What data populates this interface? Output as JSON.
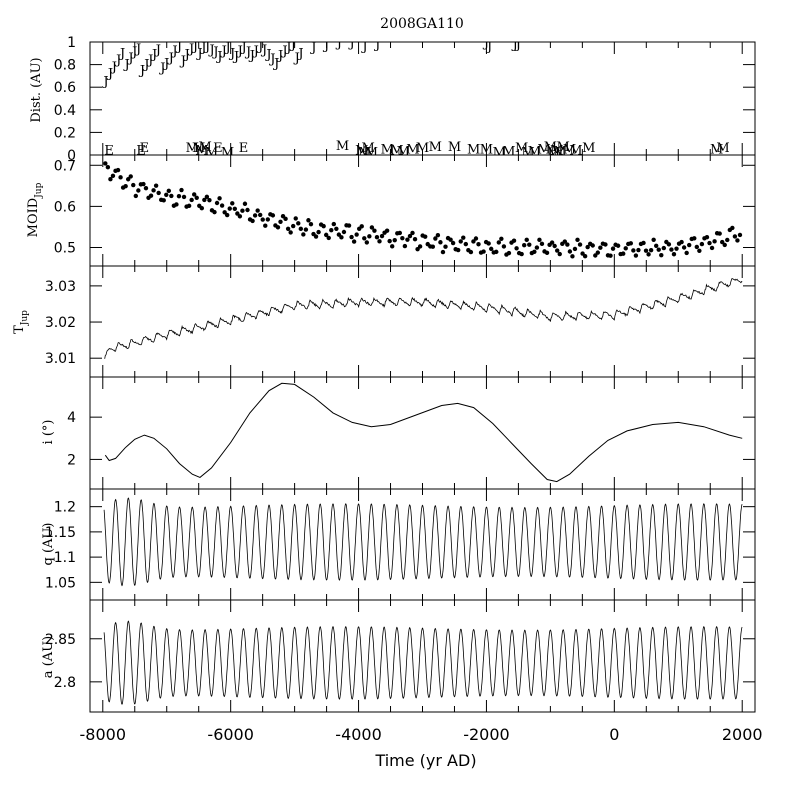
{
  "chart_data": {
    "type": "line",
    "title": "2008GA110",
    "xlabel": "Time (yr AD)",
    "xlim": [
      -8200,
      2200
    ],
    "xticks": [
      -8000,
      -6000,
      -4000,
      -2000,
      0,
      2000
    ],
    "panels": [
      {
        "id": "dist",
        "ylabel": "Dist. (AU)",
        "ylim": [
          0,
          1
        ],
        "yticks": [
          0,
          0.2,
          0.4,
          0.6,
          0.8,
          1
        ],
        "ytick_labels": [
          "0",
          "0.2",
          "0.4",
          "0.6",
          "0.8",
          "1"
        ],
        "encounters": [
          {
            "body": "J",
            "x": [
              -7950,
              -7880,
              -7820,
              -7750,
              -7690,
              -7620,
              -7560,
              -7500,
              -7440,
              -7380,
              -7310,
              -7250,
              -7190,
              -7130,
              -7060,
              -7000,
              -6930,
              -6870,
              -6800,
              -6740,
              -6680,
              -6610,
              -6550,
              -6480,
              -6420,
              -6360,
              -6290,
              -6230,
              -6170,
              -6100,
              -6040,
              -5970,
              -5910,
              -5850,
              -5790,
              -5720,
              -5660,
              -5600,
              -5530,
              -5470,
              -5400,
              -5340,
              -5280,
              -5220,
              -5150,
              -5090,
              -5020,
              -4960,
              -4900,
              -4700,
              -4500,
              -4300,
              -4100,
              -3900,
              -3700,
              -2000,
              -1950,
              -1550,
              -1500
            ],
            "d": [
              0.65,
              0.72,
              0.78,
              0.84,
              0.9,
              0.8,
              0.86,
              0.91,
              0.94,
              0.75,
              0.8,
              0.84,
              0.89,
              0.93,
              0.77,
              0.81,
              0.86,
              0.92,
              0.96,
              0.83,
              0.89,
              0.94,
              0.96,
              0.9,
              0.95,
              0.96,
              0.93,
              0.91,
              0.87,
              0.92,
              0.95,
              0.9,
              0.87,
              0.92,
              0.95,
              0.91,
              0.88,
              0.92,
              0.96,
              0.93,
              0.89,
              0.85,
              0.81,
              0.88,
              0.92,
              0.95,
              0.98,
              0.86,
              0.9,
              0.95,
              0.97,
              0.99,
              0.99,
              0.96,
              0.98,
              0.99,
              0.96,
              0.98,
              0.98
            ]
          },
          {
            "body": "E",
            "x": [
              -7900,
              -7400,
              -7350,
              -6200,
              -5800
            ],
            "d": [
              0.04,
              0.04,
              0.06,
              0.06,
              0.06
            ]
          },
          {
            "body": "M",
            "x": [
              -6600,
              -6500,
              -6450,
              -6400,
              -6300,
              -6050,
              -4250,
              -3950,
              -3900,
              -3850,
              -3800,
              -3550,
              -3400,
              -3300,
              -3150,
              -3000,
              -2800,
              -2500,
              -2200,
              -2000,
              -1800,
              -1650,
              -1450,
              -1350,
              -1250,
              -1100,
              -1000,
              -950,
              -900,
              -850,
              -800,
              -700,
              -600,
              -400,
              1600,
              1700
            ],
            "d": [
              0.06,
              0.06,
              0.04,
              0.07,
              0.02,
              0.02,
              0.08,
              0.04,
              0.02,
              0.06,
              0.02,
              0.05,
              0.04,
              0.03,
              0.05,
              0.06,
              0.07,
              0.07,
              0.05,
              0.05,
              0.02,
              0.03,
              0.06,
              0.02,
              0.03,
              0.05,
              0.07,
              0.02,
              0.04,
              0.03,
              0.07,
              0.05,
              0.04,
              0.06,
              0.05,
              0.06
            ]
          }
        ]
      },
      {
        "id": "moid",
        "ylabel_main": "MOID",
        "ylabel_sub": "Jup",
        "ylim": [
          0.455,
          0.725
        ],
        "yticks": [
          0.5,
          0.6,
          0.7
        ],
        "ytick_labels": [
          "0.5",
          "0.6",
          "0.7"
        ],
        "style": "dots",
        "trend": [
          [
            -8000,
            0.7
          ],
          [
            -7500,
            0.645
          ],
          [
            -7000,
            0.625
          ],
          [
            -6500,
            0.61
          ],
          [
            -6000,
            0.595
          ],
          [
            -5500,
            0.575
          ],
          [
            -5000,
            0.555
          ],
          [
            -4500,
            0.54
          ],
          [
            -4000,
            0.535
          ],
          [
            -3000,
            0.515
          ],
          [
            -2000,
            0.5
          ],
          [
            -1000,
            0.5
          ],
          [
            0,
            0.495
          ],
          [
            1000,
            0.5
          ],
          [
            1500,
            0.515
          ],
          [
            2000,
            0.535
          ]
        ],
        "spread": 0.016
      },
      {
        "id": "tjup",
        "ylabel_main": "T",
        "ylabel_sub": "Jup",
        "ylim": [
          3.0048,
          3.0355
        ],
        "yticks": [
          3.01,
          3.02,
          3.03
        ],
        "ytick_labels": [
          "3.01",
          "3.02",
          "3.03"
        ],
        "style": "oscillating",
        "trend": [
          [
            -8000,
            3.008
          ],
          [
            -7900,
            3.0125
          ],
          [
            -7000,
            3.0165
          ],
          [
            -6000,
            3.0205
          ],
          [
            -5000,
            3.0245
          ],
          [
            -4000,
            3.0255
          ],
          [
            -3000,
            3.0255
          ],
          [
            -2000,
            3.024
          ],
          [
            -1000,
            3.0215
          ],
          [
            0,
            3.022
          ],
          [
            1000,
            3.0265
          ],
          [
            2000,
            3.032
          ]
        ],
        "amplitude": 0.0022
      },
      {
        "id": "incl",
        "ylabel": "i (°)",
        "ylim": [
          0.6,
          5.9
        ],
        "yticks": [
          2,
          4
        ],
        "ytick_labels": [
          "2",
          "4"
        ],
        "style": "smooth",
        "points": [
          [
            -7960,
            2.2
          ],
          [
            -7900,
            1.95
          ],
          [
            -7800,
            2.05
          ],
          [
            -7650,
            2.55
          ],
          [
            -7500,
            2.95
          ],
          [
            -7350,
            3.15
          ],
          [
            -7200,
            3.0
          ],
          [
            -7000,
            2.5
          ],
          [
            -6800,
            1.8
          ],
          [
            -6600,
            1.3
          ],
          [
            -6480,
            1.15
          ],
          [
            -6300,
            1.6
          ],
          [
            -6000,
            2.8
          ],
          [
            -5700,
            4.2
          ],
          [
            -5400,
            5.25
          ],
          [
            -5200,
            5.6
          ],
          [
            -5000,
            5.55
          ],
          [
            -4700,
            4.95
          ],
          [
            -4400,
            4.2
          ],
          [
            -4100,
            3.75
          ],
          [
            -3800,
            3.55
          ],
          [
            -3500,
            3.65
          ],
          [
            -3100,
            4.1
          ],
          [
            -2700,
            4.55
          ],
          [
            -2450,
            4.65
          ],
          [
            -2200,
            4.45
          ],
          [
            -1900,
            3.7
          ],
          [
            -1600,
            2.75
          ],
          [
            -1300,
            1.8
          ],
          [
            -1050,
            1.05
          ],
          [
            -900,
            0.95
          ],
          [
            -700,
            1.3
          ],
          [
            -400,
            2.15
          ],
          [
            -100,
            2.9
          ],
          [
            200,
            3.35
          ],
          [
            600,
            3.65
          ],
          [
            1000,
            3.75
          ],
          [
            1400,
            3.55
          ],
          [
            1800,
            3.15
          ],
          [
            2000,
            3.0
          ]
        ]
      },
      {
        "id": "q",
        "ylabel": "q (AU)",
        "ylim": [
          1.015,
          1.235
        ],
        "yticks": [
          1.05,
          1.1,
          1.15,
          1.2
        ],
        "ytick_labels": [
          "1.05",
          "1.1",
          "1.15",
          "1.2"
        ],
        "style": "oscillating",
        "period": 200,
        "mean": 1.13,
        "amplitude": 0.072
      },
      {
        "id": "a",
        "ylabel": "a (AU)",
        "ylim": [
          2.765,
          2.895
        ],
        "yticks": [
          2.8,
          2.85
        ],
        "ytick_labels": [
          "2.8",
          "2.85"
        ],
        "style": "oscillating",
        "period": 200,
        "mean": 2.822,
        "amplitude": 0.04
      }
    ]
  }
}
